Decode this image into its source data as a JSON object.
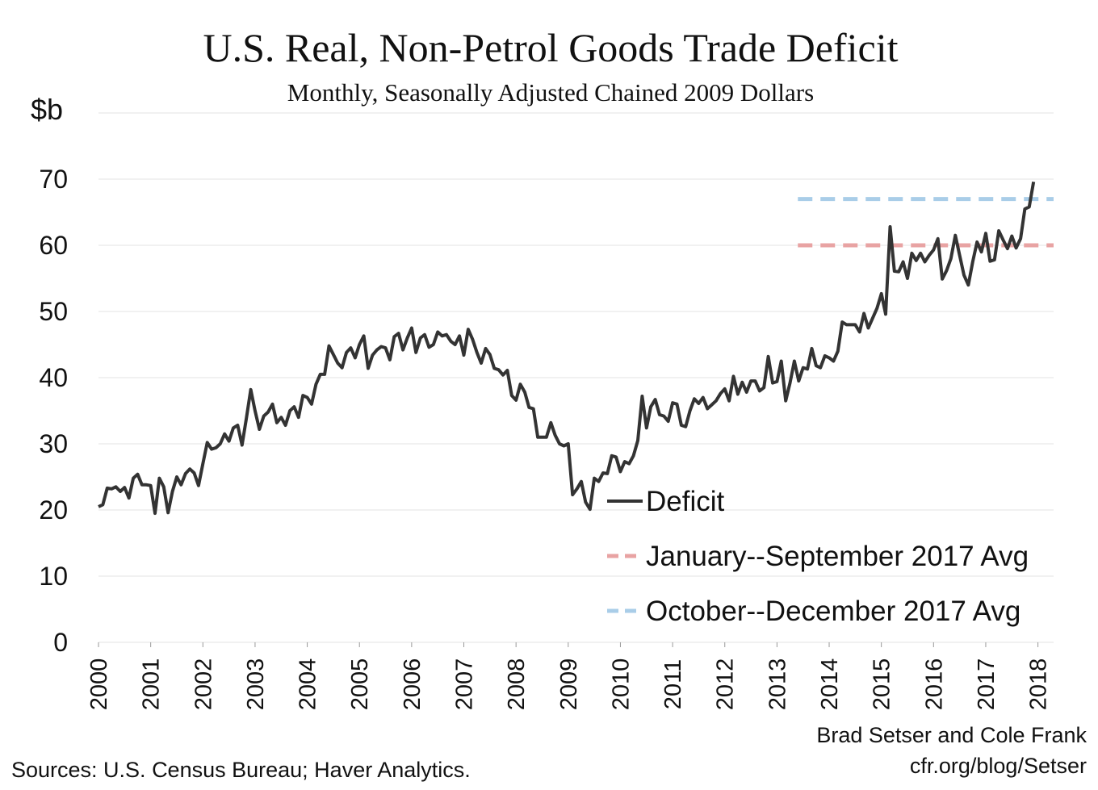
{
  "chart_data": {
    "type": "line",
    "title": "U.S. Real, Non-Petrol Goods Trade Deficit",
    "subtitle": "Monthly, Seasonally Adjusted Chained 2009 Dollars",
    "y_label": "$b",
    "source": "Sources: U.S. Census Bureau; Haver Analytics.",
    "credit": [
      "Brad Setser and Cole Frank",
      "cfr.org/blog/Setser"
    ],
    "xlim": [
      2000,
      2018.3
    ],
    "xticks": [
      2000,
      2001,
      2002,
      2003,
      2004,
      2005,
      2006,
      2007,
      2008,
      2009,
      2010,
      2011,
      2012,
      2013,
      2014,
      2015,
      2016,
      2017,
      2018
    ],
    "ylim": [
      0,
      80
    ],
    "yticks": [
      0,
      10,
      20,
      30,
      40,
      50,
      60,
      70
    ],
    "grid": true,
    "x": [
      2000,
      2000.083,
      2000.167,
      2000.25,
      2000.333,
      2000.417,
      2000.5,
      2000.583,
      2000.667,
      2000.75,
      2000.833,
      2000.917,
      2001,
      2001.083,
      2001.167,
      2001.25,
      2001.333,
      2001.417,
      2001.5,
      2001.583,
      2001.667,
      2001.75,
      2001.833,
      2001.917,
      2002,
      2002.083,
      2002.167,
      2002.25,
      2002.333,
      2002.417,
      2002.5,
      2002.583,
      2002.667,
      2002.75,
      2002.833,
      2002.917,
      2003,
      2003.083,
      2003.167,
      2003.25,
      2003.333,
      2003.417,
      2003.5,
      2003.583,
      2003.667,
      2003.75,
      2003.833,
      2003.917,
      2004,
      2004.083,
      2004.167,
      2004.25,
      2004.333,
      2004.417,
      2004.5,
      2004.583,
      2004.667,
      2004.75,
      2004.833,
      2004.917,
      2005,
      2005.083,
      2005.167,
      2005.25,
      2005.333,
      2005.417,
      2005.5,
      2005.583,
      2005.667,
      2005.75,
      2005.833,
      2005.917,
      2006,
      2006.083,
      2006.167,
      2006.25,
      2006.333,
      2006.417,
      2006.5,
      2006.583,
      2006.667,
      2006.75,
      2006.833,
      2006.917,
      2007,
      2007.083,
      2007.167,
      2007.25,
      2007.333,
      2007.417,
      2007.5,
      2007.583,
      2007.667,
      2007.75,
      2007.833,
      2007.917,
      2008,
      2008.083,
      2008.167,
      2008.25,
      2008.333,
      2008.417,
      2008.5,
      2008.583,
      2008.667,
      2008.75,
      2008.833,
      2008.917,
      2009,
      2009.083,
      2009.167,
      2009.25,
      2009.333,
      2009.417,
      2009.5,
      2009.583,
      2009.667,
      2009.75,
      2009.833,
      2009.917,
      2010,
      2010.083,
      2010.167,
      2010.25,
      2010.333,
      2010.417,
      2010.5,
      2010.583,
      2010.667,
      2010.75,
      2010.833,
      2010.917,
      2011,
      2011.083,
      2011.167,
      2011.25,
      2011.333,
      2011.417,
      2011.5,
      2011.583,
      2011.667,
      2011.75,
      2011.833,
      2011.917,
      2012,
      2012.083,
      2012.167,
      2012.25,
      2012.333,
      2012.417,
      2012.5,
      2012.583,
      2012.667,
      2012.75,
      2012.833,
      2012.917,
      2013,
      2013.083,
      2013.167,
      2013.25,
      2013.333,
      2013.417,
      2013.5,
      2013.583,
      2013.667,
      2013.75,
      2013.833,
      2013.917,
      2014,
      2014.083,
      2014.167,
      2014.25,
      2014.333,
      2014.417,
      2014.5,
      2014.583,
      2014.667,
      2014.75,
      2014.833,
      2014.917,
      2015,
      2015.083,
      2015.167,
      2015.25,
      2015.333,
      2015.417,
      2015.5,
      2015.583,
      2015.667,
      2015.75,
      2015.833,
      2015.917,
      2016,
      2016.083,
      2016.167,
      2016.25,
      2016.333,
      2016.417,
      2016.5,
      2016.583,
      2016.667,
      2016.75,
      2016.833,
      2016.917,
      2017,
      2017.083,
      2017.167,
      2017.25,
      2017.333,
      2017.417,
      2017.5,
      2017.583,
      2017.667,
      2017.75,
      2017.833,
      2017.917
    ],
    "series": [
      {
        "name": "Deficit",
        "color": "#333333",
        "values": [
          20.5,
          20.8,
          23.3,
          23.2,
          23.5,
          22.8,
          23.4,
          21.8,
          24.8,
          25.4,
          23.8,
          23.8,
          23.7,
          19.5,
          24.8,
          23.5,
          19.6,
          22.8,
          25,
          23.8,
          25.5,
          26.2,
          25.6,
          23.7,
          27,
          30.2,
          29.2,
          29.4,
          30,
          31.5,
          30.4,
          32.4,
          32.8,
          29.8,
          33.8,
          38.2,
          35,
          32.2,
          34.2,
          34.8,
          36,
          33.2,
          34,
          32.8,
          35,
          35.6,
          34,
          37.3,
          37,
          36,
          39,
          40.5,
          40.5,
          44.8,
          43.5,
          42.2,
          41.5,
          43.8,
          44.5,
          43,
          45,
          46.3,
          41.4,
          43.4,
          44.2,
          44.7,
          44.5,
          42.7,
          46.2,
          46.7,
          44.2,
          46,
          47.5,
          43.8,
          46,
          46.5,
          44.6,
          45,
          46.9,
          46.3,
          46.5,
          45.5,
          45,
          46.3,
          43.4,
          47.3,
          45.8,
          43.8,
          42.2,
          44.4,
          43.5,
          41.4,
          41.2,
          40.4,
          41.1,
          37.3,
          36.6,
          39,
          37.8,
          35.5,
          35.3,
          31,
          31,
          31,
          33.2,
          31.3,
          30,
          29.7,
          30,
          22.3,
          23.2,
          24.3,
          21.2,
          20.1,
          24.8,
          24.3,
          25.6,
          25.5,
          28.2,
          28,
          25.8,
          27.3,
          27,
          28.2,
          30.5,
          37.2,
          32.4,
          35.6,
          36.7,
          34.4,
          34.2,
          33.4,
          36.2,
          36,
          32.8,
          32.6,
          35,
          36.8,
          36.1,
          37,
          35.3,
          35.9,
          36.5,
          37.6,
          38.3,
          36.5,
          40.2,
          37.5,
          39.3,
          37.8,
          39.5,
          39.5,
          38,
          38.5,
          43.2,
          39.2,
          39.4,
          42.5,
          36.5,
          39.2,
          42.5,
          39.5,
          41.5,
          41.3,
          44.4,
          41.8,
          41.5,
          43.3,
          43,
          42.5,
          44,
          48.4,
          48,
          48,
          48,
          46.9,
          49.7,
          47.5,
          49,
          50.5,
          52.7,
          49.6,
          62.8,
          56.1,
          56,
          57.5,
          55,
          58.8,
          57.7,
          58.8,
          57.5,
          58.5,
          59.3,
          61,
          54.9,
          56.2,
          58,
          61.5,
          58.5,
          55.5,
          54,
          57.5,
          60.5,
          59,
          61.8,
          57.6,
          57.8,
          62.2,
          60.8,
          59.5,
          61.4,
          59.6,
          61,
          65.5,
          65.8,
          69.6
        ]
      }
    ],
    "reference_lines": [
      {
        "name": "January--September 2017 Avg",
        "color": "#e8a3a3",
        "value": 60,
        "x_range": [
          2013.4,
          2018.3
        ]
      },
      {
        "name": "October--December 2017 Avg",
        "color": "#a9cde8",
        "value": 67,
        "x_range": [
          2013.4,
          2018.3
        ]
      }
    ]
  }
}
